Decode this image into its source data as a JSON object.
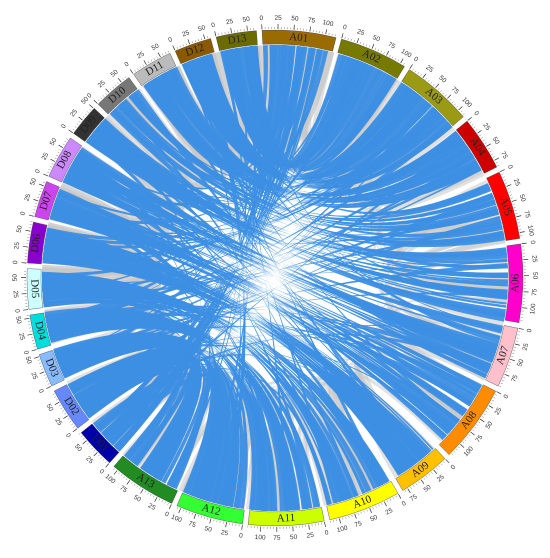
{
  "chart_data": {
    "type": "circos",
    "ticks": [
      0,
      25,
      50,
      75,
      100
    ],
    "chromosomes": [
      {
        "name": "A01",
        "color": "#9a6b00",
        "length": 117
      },
      {
        "name": "A02",
        "color": "#767a00",
        "length": 108
      },
      {
        "name": "A03",
        "color": "#9a9a14",
        "length": 113
      },
      {
        "name": "A04",
        "color": "#cc0000",
        "length": 86
      },
      {
        "name": "A05",
        "color": "#ff0000",
        "length": 109
      },
      {
        "name": "A06",
        "color": "#ff00cc",
        "length": 124
      },
      {
        "name": "A07",
        "color": "#ffc0cb",
        "length": 96
      },
      {
        "name": "A08",
        "color": "#ff8c00",
        "length": 124
      },
      {
        "name": "A09",
        "color": "#ffc000",
        "length": 83
      },
      {
        "name": "A10",
        "color": "#ffff00",
        "length": 115
      },
      {
        "name": "A11",
        "color": "#ccff00",
        "length": 120
      },
      {
        "name": "A12",
        "color": "#33ff33",
        "length": 107
      },
      {
        "name": "A13",
        "color": "#228b22",
        "length": 108
      },
      {
        "name": "D01",
        "color": "#0000aa",
        "length": 65
      },
      {
        "name": "D02",
        "color": "#6688ff",
        "length": 69
      },
      {
        "name": "D03",
        "color": "#88bbff",
        "length": 53
      },
      {
        "name": "D04",
        "color": "#00dddd",
        "length": 55
      },
      {
        "name": "D05",
        "color": "#ccffff",
        "length": 64
      },
      {
        "name": "D06",
        "color": "#8800cc",
        "length": 65
      },
      {
        "name": "D07",
        "color": "#cc44ee",
        "length": 58
      },
      {
        "name": "D08",
        "color": "#cc88ff",
        "length": 69
      },
      {
        "name": "D09",
        "color": "#333333",
        "length": 51
      },
      {
        "name": "D10",
        "color": "#777777",
        "length": 64
      },
      {
        "name": "D11",
        "color": "#bbbbbb",
        "length": 66
      },
      {
        "name": "D12",
        "color": "#8b5a00",
        "length": 59
      },
      {
        "name": "D13",
        "color": "#6b6b00",
        "length": 64
      }
    ]
  }
}
